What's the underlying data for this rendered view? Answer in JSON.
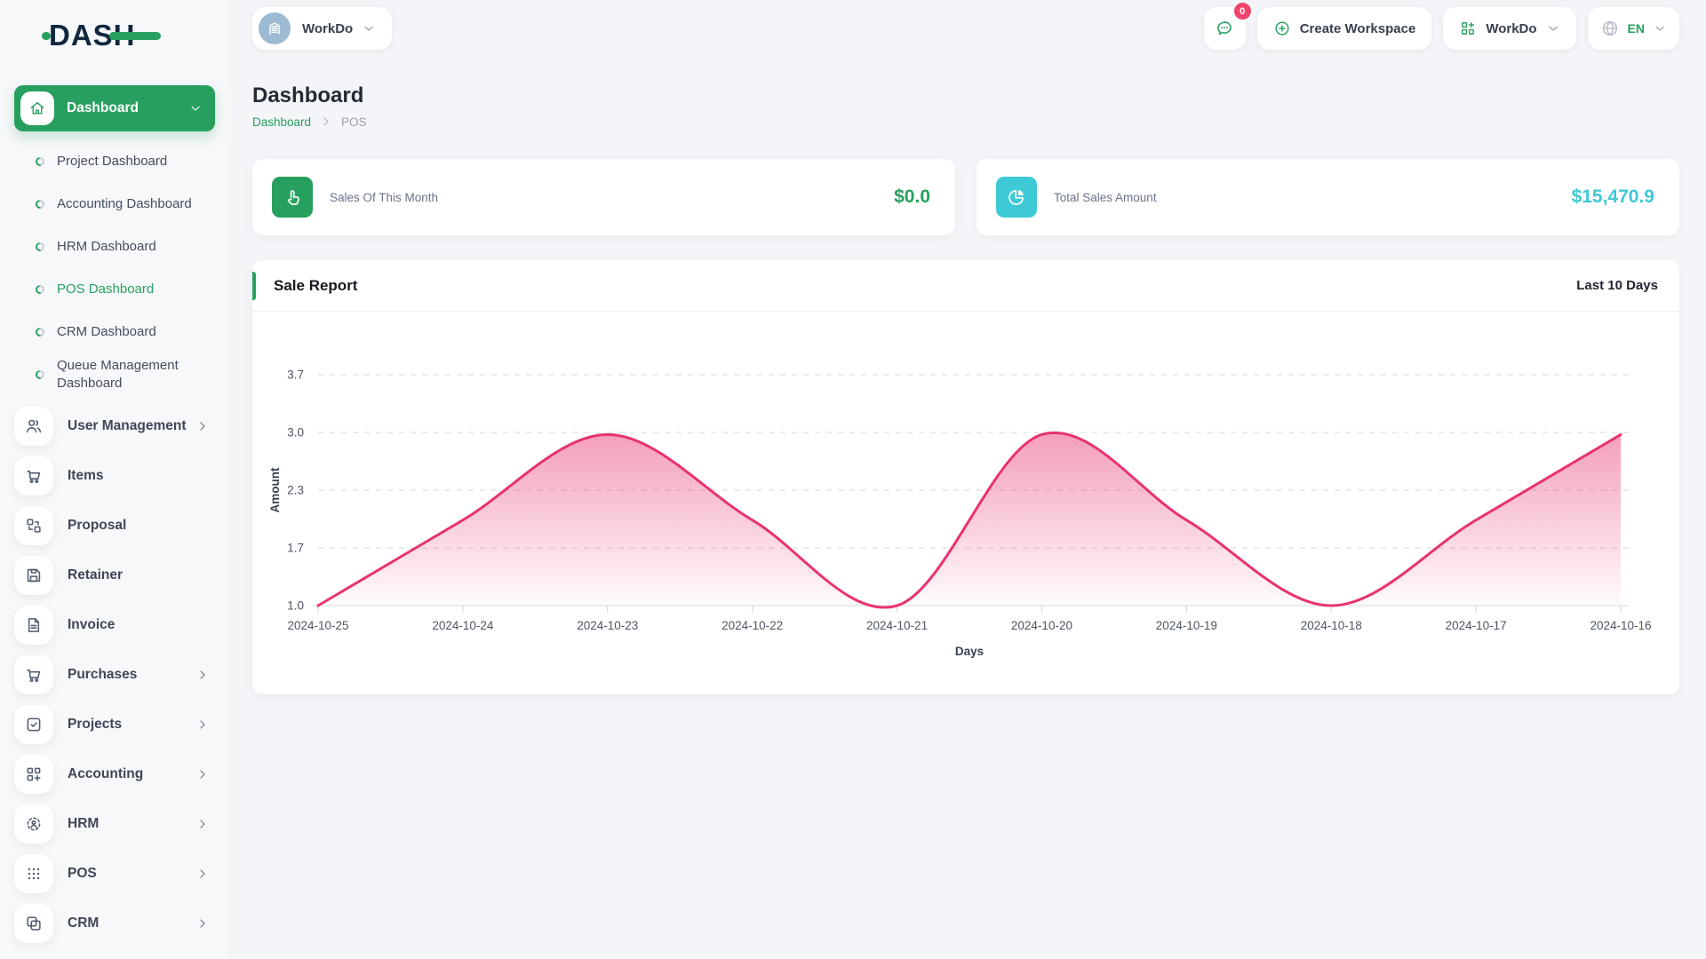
{
  "brand": {
    "logo_text": "DASH"
  },
  "header": {
    "workspace_switcher": {
      "label": "WorkDo"
    },
    "messages_badge": "0",
    "create_workspace_label": "Create Workspace",
    "workdo_menu_label": "WorkDo",
    "language_code": "EN"
  },
  "sidebar": {
    "dashboard_group": {
      "label": "Dashboard",
      "active_item": "POS Dashboard",
      "items": [
        "Project Dashboard",
        "Accounting Dashboard",
        "HRM Dashboard",
        "POS Dashboard",
        "CRM Dashboard",
        "Queue Management Dashboard"
      ]
    },
    "items": [
      {
        "label": "User Management",
        "icon": "users",
        "expandable": true
      },
      {
        "label": "Items",
        "icon": "cart",
        "expandable": false
      },
      {
        "label": "Proposal",
        "icon": "proposal",
        "expandable": false
      },
      {
        "label": "Retainer",
        "icon": "retainer",
        "expandable": false
      },
      {
        "label": "Invoice",
        "icon": "invoice",
        "expandable": false
      },
      {
        "label": "Purchases",
        "icon": "cart",
        "expandable": true
      },
      {
        "label": "Projects",
        "icon": "projects",
        "expandable": true
      },
      {
        "label": "Accounting",
        "icon": "accounting",
        "expandable": true
      },
      {
        "label": "HRM",
        "icon": "hrm",
        "expandable": true
      },
      {
        "label": "POS",
        "icon": "pos",
        "expandable": true
      },
      {
        "label": "CRM",
        "icon": "crm",
        "expandable": true
      }
    ]
  },
  "page": {
    "title": "Dashboard",
    "breadcrumb": {
      "root": "Dashboard",
      "current": "POS"
    }
  },
  "stats": [
    {
      "label": "Sales Of This Month",
      "value": "$0.0",
      "accent": "#27a05f",
      "icon": "tap"
    },
    {
      "label": "Total Sales Amount",
      "value": "$15,470.9",
      "accent": "#3ec9d6",
      "icon": "pie"
    }
  ],
  "chart_card": {
    "title": "Sale Report",
    "period": "Last 10 Days"
  },
  "chart_data": {
    "type": "area",
    "title": "Sale Report",
    "x": [
      "2024-10-25",
      "2024-10-24",
      "2024-10-23",
      "2024-10-22",
      "2024-10-21",
      "2024-10-20",
      "2024-10-19",
      "2024-10-18",
      "2024-10-17",
      "2024-10-16"
    ],
    "values": [
      1,
      2,
      3,
      2,
      1,
      3,
      2,
      1,
      2,
      3
    ],
    "xlabel": "Days",
    "ylabel": "Amount",
    "ytick_labels": [
      "1.0",
      "1.7",
      "2.3",
      "3.0",
      "3.7"
    ],
    "ylim": [
      1.0,
      3.7
    ],
    "grid": "dashed-horizontal",
    "legend": "none",
    "line_color": "#e8336e",
    "fill_from": "rgba(232,51,110,0.50)",
    "fill_to": "rgba(232,51,110,0.02)"
  },
  "colors": {
    "brand_green": "#27a05f",
    "teal": "#3ec9d6",
    "badge_pink": "#f0436e",
    "chart_pink": "#e8336e"
  }
}
